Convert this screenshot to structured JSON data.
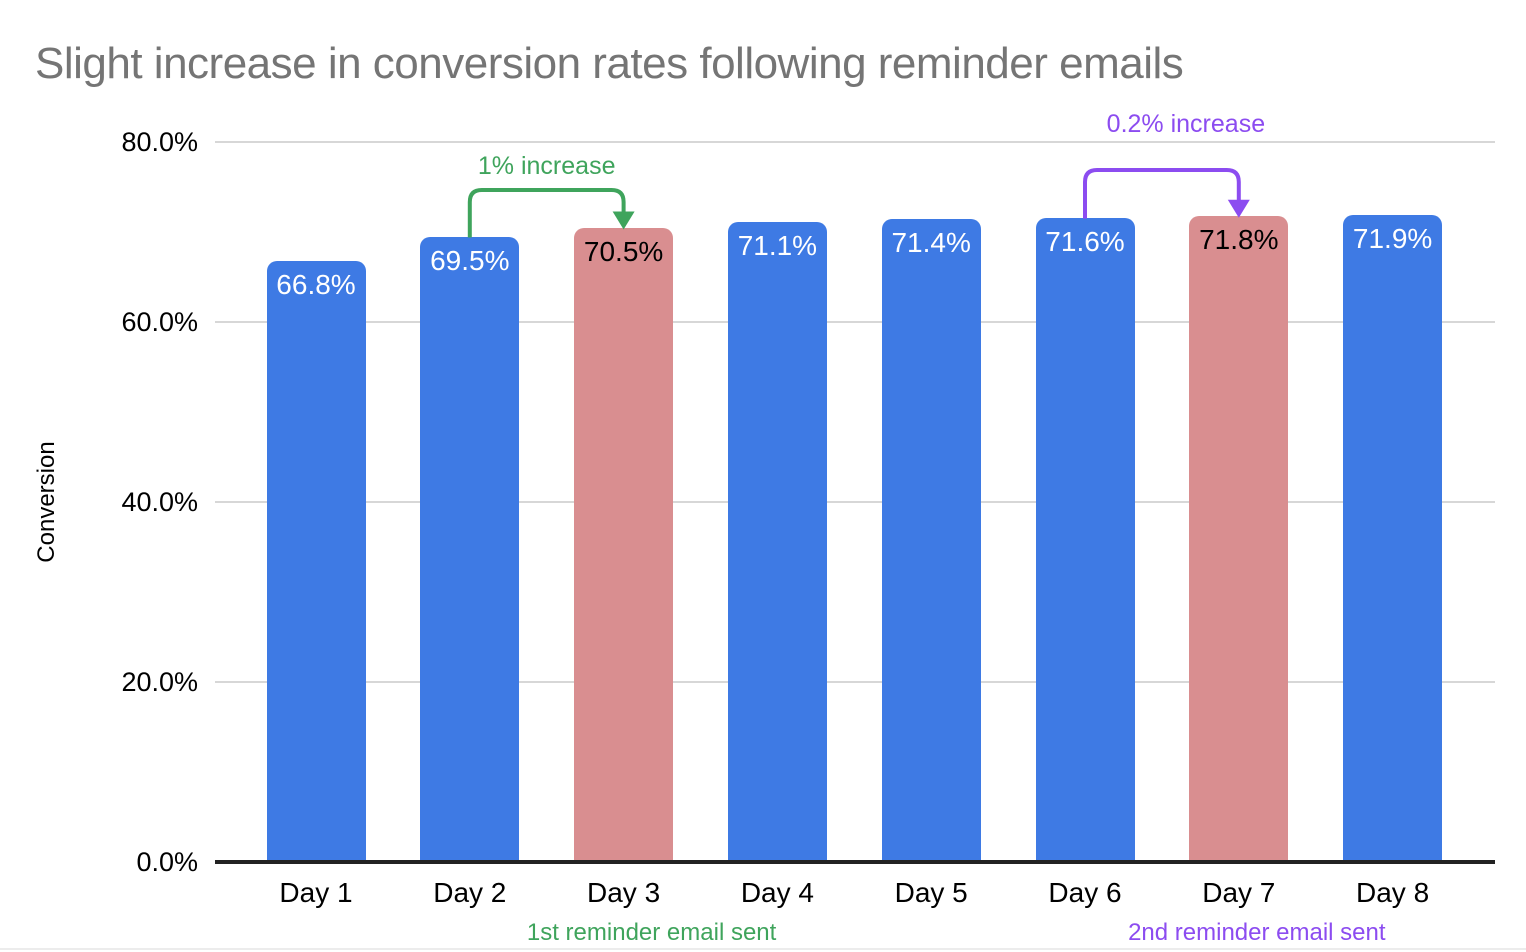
{
  "chart_data": {
    "type": "bar",
    "title": "Slight increase in conversion rates following reminder emails",
    "xlabel": "",
    "ylabel": "Conversion",
    "categories": [
      "Day 1",
      "Day 2",
      "Day 3",
      "Day 4",
      "Day 5",
      "Day 6",
      "Day 7",
      "Day 8"
    ],
    "values": [
      66.8,
      69.5,
      70.5,
      71.1,
      71.4,
      71.6,
      71.8,
      71.9
    ],
    "value_labels": [
      "66.8%",
      "69.5%",
      "70.5%",
      "71.1%",
      "71.4%",
      "71.6%",
      "71.8%",
      "71.9%"
    ],
    "bar_colors": [
      "blue",
      "blue",
      "pink",
      "blue",
      "blue",
      "blue",
      "pink",
      "blue"
    ],
    "ylim": [
      0,
      80
    ],
    "ytick_values": [
      0,
      20,
      40,
      60,
      80
    ],
    "ytick_labels": [
      "0.0%",
      "20.0%",
      "40.0%",
      "60.0%",
      "80.0%"
    ],
    "grid": true,
    "legend_position": "none",
    "arrow_annotations": [
      {
        "text": "1% increase",
        "color_name": "green",
        "from": "Day 2",
        "to": "Day 3"
      },
      {
        "text": "0.2% increase",
        "color_name": "purple",
        "from": "Day 6",
        "to": "Day 7"
      }
    ],
    "footnotes": [
      {
        "text": "1st reminder email sent",
        "color_name": "green",
        "category": "Day 3"
      },
      {
        "text": "2nd reminder email sent",
        "color_name": "purple",
        "category": "Day 7"
      }
    ]
  },
  "colors": {
    "title_text": "#757575",
    "axis_text": "#000000",
    "bar_blue": "#3e7ae4",
    "bar_pink": "#d98e90",
    "label_on_blue": "#ffffff",
    "label_on_pink": "#000000",
    "green": "#3fa45c",
    "purple": "#8c4cf0",
    "gridline": "#d7d7d7",
    "axis_line": "#222222"
  }
}
